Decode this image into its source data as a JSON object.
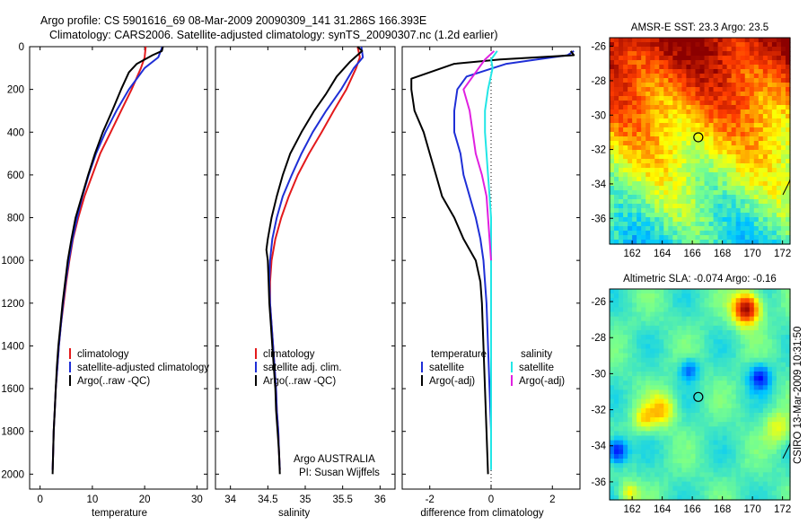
{
  "header": {
    "line1": "Argo profile: CS 5901616_69 08-Mar-2009 20090309_141 31.286S 166.393E",
    "line2": "Climatology: CARS2006. Satellite-adjusted climatology: synTS_20090307.nc (1.2d earlier)"
  },
  "side_label": "CSIRO 13-Mar-2009 10:31:50",
  "credit": {
    "line1": "Argo AUSTRALIA",
    "line2": "PI: Susan Wijffels"
  },
  "colors": {
    "red": "#e31a1c",
    "blue": "#1f2fd6",
    "black": "#000000",
    "cyan": "#22e6e6",
    "magenta": "#e020e0"
  },
  "chart_data": [
    {
      "type": "line",
      "xlabel": "temperature",
      "ylabel": "",
      "xlim": [
        -2,
        32
      ],
      "ylim": [
        2070,
        0
      ],
      "xticks": [
        0,
        10,
        20,
        30
      ],
      "yticks": [
        0,
        200,
        400,
        600,
        800,
        1000,
        1200,
        1400,
        1600,
        1800,
        2000
      ],
      "legend": [
        "climatology",
        "satellite-adjusted climatology",
        "Argo(..raw -QC)"
      ],
      "series": [
        {
          "name": "climatology",
          "color": "red",
          "points": [
            [
              20.2,
              0
            ],
            [
              20.0,
              50
            ],
            [
              19.3,
              100
            ],
            [
              17.5,
              200
            ],
            [
              15.5,
              300
            ],
            [
              13.5,
              400
            ],
            [
              11.5,
              500
            ],
            [
              10.0,
              600
            ],
            [
              8.5,
              700
            ],
            [
              7.3,
              800
            ],
            [
              6.3,
              900
            ],
            [
              5.6,
              1000
            ],
            [
              5.0,
              1100
            ],
            [
              4.5,
              1200
            ],
            [
              4.0,
              1300
            ],
            [
              3.6,
              1400
            ],
            [
              3.3,
              1500
            ],
            [
              3.0,
              1600
            ],
            [
              2.8,
              1700
            ],
            [
              2.6,
              1800
            ],
            [
              2.5,
              1900
            ],
            [
              2.4,
              1980
            ]
          ]
        },
        {
          "name": "satellite-adjusted climatology",
          "color": "blue",
          "points": [
            [
              23.4,
              0
            ],
            [
              22.6,
              50
            ],
            [
              20.0,
              100
            ],
            [
              17.0,
              200
            ],
            [
              14.6,
              300
            ],
            [
              12.5,
              400
            ],
            [
              10.7,
              500
            ],
            [
              9.3,
              600
            ],
            [
              8.1,
              700
            ],
            [
              7.1,
              800
            ],
            [
              6.2,
              900
            ],
            [
              5.5,
              1000
            ],
            [
              4.9,
              1100
            ],
            [
              4.4,
              1200
            ],
            [
              4.0,
              1300
            ],
            [
              3.6,
              1400
            ],
            [
              3.3,
              1500
            ],
            [
              3.0,
              1600
            ],
            [
              2.8,
              1700
            ],
            [
              2.6,
              1800
            ],
            [
              2.5,
              1900
            ],
            [
              2.4,
              1980
            ]
          ]
        },
        {
          "name": "Argo(..raw -QC)",
          "color": "black",
          "points": [
            [
              23.5,
              0
            ],
            [
              23.3,
              20
            ],
            [
              21.5,
              40
            ],
            [
              18.5,
              80
            ],
            [
              17.0,
              120
            ],
            [
              15.5,
              200
            ],
            [
              13.8,
              300
            ],
            [
              12.0,
              400
            ],
            [
              10.5,
              500
            ],
            [
              9.2,
              600
            ],
            [
              8.0,
              700
            ],
            [
              6.8,
              800
            ],
            [
              6.0,
              900
            ],
            [
              5.3,
              1000
            ],
            [
              4.8,
              1100
            ],
            [
              4.3,
              1200
            ],
            [
              3.9,
              1300
            ],
            [
              3.5,
              1400
            ],
            [
              3.2,
              1500
            ],
            [
              3.0,
              1600
            ],
            [
              2.8,
              1700
            ],
            [
              2.6,
              1800
            ],
            [
              2.5,
              1900
            ],
            [
              2.4,
              2000
            ]
          ]
        }
      ]
    },
    {
      "type": "line",
      "xlabel": "salinity",
      "ylabel": "",
      "xlim": [
        33.8,
        36.2
      ],
      "ylim": [
        2070,
        0
      ],
      "xticks": [
        34,
        34.5,
        35,
        35.5,
        36
      ],
      "yticks": [
        0,
        200,
        400,
        600,
        800,
        1000,
        1200,
        1400,
        1600,
        1800,
        2000
      ],
      "legend": [
        "climatology",
        "satellite adj. clim.",
        "Argo(..raw -QC)"
      ],
      "series": [
        {
          "name": "climatology",
          "color": "red",
          "points": [
            [
              35.7,
              0
            ],
            [
              35.73,
              50
            ],
            [
              35.68,
              100
            ],
            [
              35.55,
              200
            ],
            [
              35.38,
              300
            ],
            [
              35.22,
              400
            ],
            [
              35.05,
              500
            ],
            [
              34.9,
              600
            ],
            [
              34.78,
              700
            ],
            [
              34.68,
              800
            ],
            [
              34.6,
              900
            ],
            [
              34.55,
              1000
            ],
            [
              34.53,
              1100
            ],
            [
              34.53,
              1200
            ],
            [
              34.55,
              1300
            ],
            [
              34.57,
              1400
            ],
            [
              34.59,
              1500
            ],
            [
              34.61,
              1600
            ],
            [
              34.62,
              1700
            ],
            [
              34.64,
              1800
            ],
            [
              34.65,
              1900
            ],
            [
              34.66,
              1980
            ]
          ]
        },
        {
          "name": "satellite adj. clim.",
          "color": "blue",
          "points": [
            [
              35.75,
              0
            ],
            [
              35.77,
              50
            ],
            [
              35.65,
              100
            ],
            [
              35.48,
              200
            ],
            [
              35.28,
              300
            ],
            [
              35.1,
              400
            ],
            [
              34.95,
              500
            ],
            [
              34.82,
              600
            ],
            [
              34.7,
              700
            ],
            [
              34.62,
              800
            ],
            [
              34.56,
              900
            ],
            [
              34.53,
              1000
            ],
            [
              34.52,
              1100
            ],
            [
              34.53,
              1200
            ],
            [
              34.55,
              1300
            ],
            [
              34.57,
              1400
            ],
            [
              34.59,
              1500
            ],
            [
              34.61,
              1600
            ],
            [
              34.62,
              1700
            ],
            [
              34.64,
              1800
            ],
            [
              34.65,
              1900
            ],
            [
              34.66,
              1980
            ]
          ]
        },
        {
          "name": "Argo(..raw -QC)",
          "color": "black",
          "points": [
            [
              35.7,
              0
            ],
            [
              35.76,
              20
            ],
            [
              35.6,
              70
            ],
            [
              35.42,
              140
            ],
            [
              35.28,
              220
            ],
            [
              35.12,
              300
            ],
            [
              34.95,
              400
            ],
            [
              34.8,
              500
            ],
            [
              34.7,
              600
            ],
            [
              34.62,
              700
            ],
            [
              34.55,
              800
            ],
            [
              34.5,
              900
            ],
            [
              34.48,
              950
            ],
            [
              34.5,
              1000
            ],
            [
              34.51,
              1100
            ],
            [
              34.52,
              1200
            ],
            [
              34.54,
              1300
            ],
            [
              34.56,
              1400
            ],
            [
              34.58,
              1500
            ],
            [
              34.6,
              1600
            ],
            [
              34.61,
              1700
            ],
            [
              34.63,
              1800
            ],
            [
              34.65,
              1900
            ],
            [
              34.66,
              2000
            ]
          ]
        }
      ]
    },
    {
      "type": "line",
      "xlabel": "difference from climatology",
      "ylabel": "",
      "xlim": [
        -2.9,
        2.9
      ],
      "ylim": [
        2070,
        0
      ],
      "xticks": [
        -2,
        0,
        2
      ],
      "yticks": [
        0,
        200,
        400,
        600,
        800,
        1000,
        1200,
        1400,
        1600,
        1800,
        2000
      ],
      "legend": [
        "temperature",
        "satellite",
        "Argo(-adj)",
        "salinity",
        "satellite",
        "Argo(-adj)"
      ],
      "series": [
        {
          "name": "temperature satellite",
          "color": "blue",
          "points": [
            [
              2.7,
              20
            ],
            [
              2.5,
              40
            ],
            [
              1.5,
              60
            ],
            [
              0.5,
              80
            ],
            [
              -0.8,
              140
            ],
            [
              -1.1,
              200
            ],
            [
              -1.2,
              300
            ],
            [
              -1.2,
              400
            ],
            [
              -1.0,
              500
            ],
            [
              -0.9,
              600
            ],
            [
              -0.7,
              700
            ],
            [
              -0.5,
              800
            ],
            [
              -0.35,
              900
            ],
            [
              -0.25,
              1000
            ],
            [
              -0.2,
              1100
            ],
            [
              -0.15,
              1200
            ],
            [
              -0.1,
              1400
            ],
            [
              -0.05,
              1600
            ],
            [
              0,
              1800
            ],
            [
              0,
              1980
            ]
          ]
        },
        {
          "name": "temperature Argo(-adj)",
          "color": "black",
          "points": [
            [
              2.6,
              20
            ],
            [
              2.7,
              40
            ],
            [
              0.3,
              60
            ],
            [
              -1.2,
              80
            ],
            [
              -2.6,
              150
            ],
            [
              -2.6,
              200
            ],
            [
              -2.5,
              300
            ],
            [
              -2.2,
              400
            ],
            [
              -2.0,
              500
            ],
            [
              -1.8,
              600
            ],
            [
              -1.6,
              700
            ],
            [
              -1.2,
              800
            ],
            [
              -0.9,
              900
            ],
            [
              -0.5,
              1000
            ],
            [
              -0.35,
              1100
            ],
            [
              -0.3,
              1200
            ],
            [
              -0.25,
              1400
            ],
            [
              -0.2,
              1600
            ],
            [
              -0.15,
              1800
            ],
            [
              -0.1,
              2000
            ]
          ]
        },
        {
          "name": "salinity satellite",
          "color": "cyan",
          "points": [
            [
              0.2,
              20
            ],
            [
              0.0,
              60
            ],
            [
              0.05,
              100
            ],
            [
              -0.1,
              200
            ],
            [
              -0.2,
              300
            ],
            [
              -0.2,
              400
            ],
            [
              -0.15,
              500
            ],
            [
              -0.1,
              600
            ],
            [
              -0.05,
              700
            ],
            [
              0.0,
              800
            ],
            [
              0.0,
              1000
            ],
            [
              0.0,
              1200
            ],
            [
              0.0,
              1500
            ],
            [
              0.0,
              1800
            ],
            [
              0.0,
              1980
            ]
          ]
        },
        {
          "name": "salinity Argo(-adj)",
          "color": "magenta",
          "points": [
            [
              0.1,
              20
            ],
            [
              -0.2,
              60
            ],
            [
              -0.4,
              100
            ],
            [
              -0.9,
              200
            ],
            [
              -0.7,
              300
            ],
            [
              -0.6,
              400
            ],
            [
              -0.5,
              500
            ],
            [
              -0.3,
              600
            ],
            [
              -0.15,
              700
            ],
            [
              -0.1,
              800
            ],
            [
              -0.05,
              900
            ],
            [
              0.0,
              1000
            ]
          ]
        }
      ]
    },
    {
      "type": "heatmap",
      "title": "AMSR-E SST: 23.3 Argo: 23.5",
      "xlabel": "",
      "ylabel": "",
      "xlim": [
        160.5,
        172.5
      ],
      "ylim": [
        -37.5,
        -25.5
      ],
      "xticks": [
        162,
        164,
        166,
        168,
        170,
        172
      ],
      "yticks": [
        -26,
        -28,
        -30,
        -32,
        -34,
        -36
      ],
      "marker": {
        "lon": 166.4,
        "lat": -31.29
      }
    },
    {
      "type": "heatmap",
      "title": "Altimetric SLA: -0.074 Argo: -0.16",
      "xlabel": "",
      "ylabel": "",
      "xlim": [
        160.5,
        172.5
      ],
      "ylim": [
        -37.0,
        -25.3
      ],
      "xticks": [
        162,
        164,
        166,
        168,
        170,
        172
      ],
      "yticks": [
        -26,
        -28,
        -30,
        -32,
        -34,
        -36
      ],
      "marker": {
        "lon": 166.4,
        "lat": -31.29
      }
    }
  ]
}
